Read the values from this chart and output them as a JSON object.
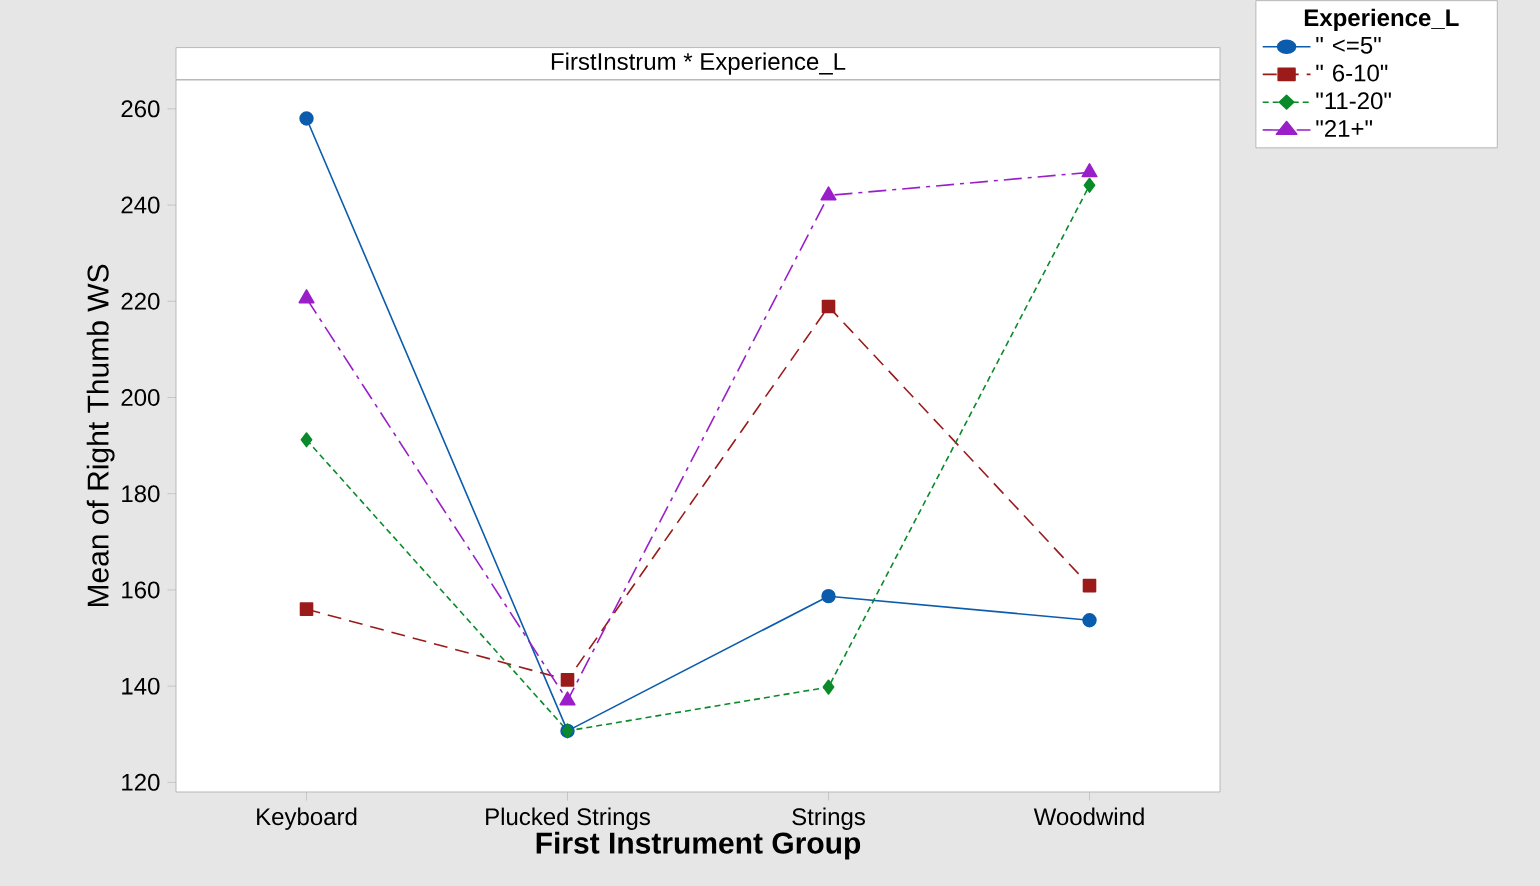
{
  "chart_data": {
    "type": "line",
    "title": "FirstInstrum * Experience_L",
    "xlabel": "First Instrument Group",
    "ylabel": "Mean of Right Thumb WS",
    "legend_title": "Experience_L",
    "categories": [
      "Keyboard",
      "Plucked Strings",
      "Strings",
      "Woodwind"
    ],
    "series": [
      {
        "name": "\" <=5\"",
        "color": "#0b5cad",
        "marker": "circle",
        "line_style": "solid",
        "values": [
          258,
          130.7,
          158.7,
          153.7
        ]
      },
      {
        "name": "\" 6-10\"",
        "color": "#9b1b1b",
        "marker": "square",
        "line_style": "dashed",
        "values": [
          156,
          141.3,
          218.9,
          160.9
        ]
      },
      {
        "name": "\"11-20\"",
        "color": "#0a8a2a",
        "marker": "diamond",
        "line_style": "dotted",
        "values": [
          191.2,
          130.7,
          139.8,
          244.1
        ]
      },
      {
        "name": "\"21+\"",
        "color": "#9a1fc9",
        "marker": "triangle",
        "line_style": "dashed",
        "values": [
          220.6,
          137,
          242,
          246.8
        ]
      }
    ],
    "ylim": [
      118,
      266
    ],
    "yticks": [
      120,
      140,
      160,
      180,
      200,
      220,
      240,
      260
    ],
    "grid": false,
    "legend": "top right"
  }
}
